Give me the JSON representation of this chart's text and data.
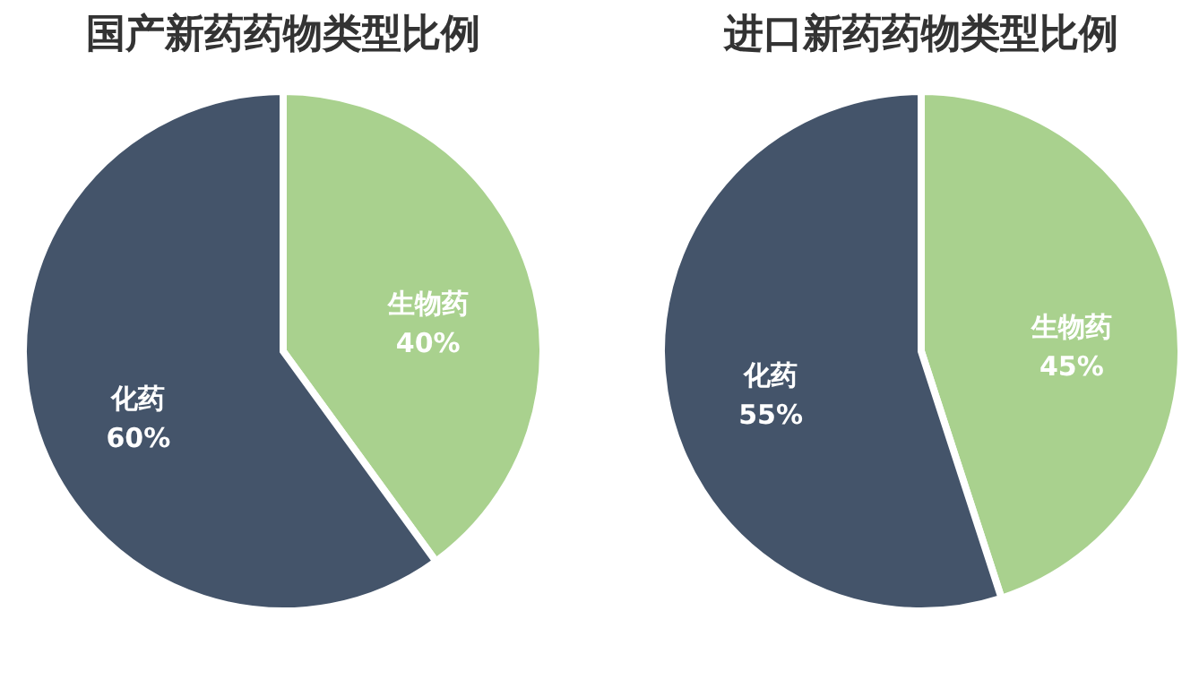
{
  "chart_data": [
    {
      "type": "pie",
      "title": "国产新药药物类型比例",
      "categories": [
        "生物药",
        "化药"
      ],
      "values": [
        40,
        60
      ],
      "colors": [
        "#a9d18e",
        "#44546a"
      ],
      "value_labels": [
        "40%",
        "60%"
      ],
      "legend": false
    },
    {
      "type": "pie",
      "title": "进口新药药物类型比例",
      "categories": [
        "生物药",
        "化药"
      ],
      "values": [
        45,
        55
      ],
      "colors": [
        "#a9d18e",
        "#44546a"
      ],
      "value_labels": [
        "45%",
        "55%"
      ],
      "legend": false
    }
  ]
}
